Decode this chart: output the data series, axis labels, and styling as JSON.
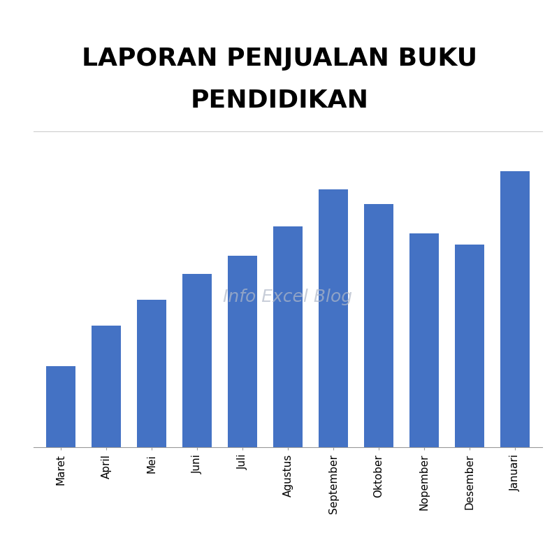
{
  "title_line1": "LAPORAN PENJUALAN BUKU",
  "title_line2": "PENDIDIKAN",
  "categories": [
    "Maret",
    "April",
    "Mei",
    "Juni",
    "Juli",
    "Agustus",
    "September",
    "Oktober",
    "Nopember",
    "Desember",
    "Januari"
  ],
  "values": [
    22,
    33,
    40,
    47,
    52,
    60,
    70,
    66,
    58,
    55,
    75
  ],
  "bar_color": "#4472C4",
  "background_color": "#ffffff",
  "watermark_text": "Info Excel Blog",
  "watermark_color": "#b0b8c8",
  "watermark_alpha": 0.7,
  "grid_color": "#bbbbbb",
  "title_fontsize": 26,
  "tick_fontsize": 11,
  "ylim": [
    0,
    85
  ],
  "figsize": [
    8.0,
    8.0
  ],
  "dpi": 100
}
